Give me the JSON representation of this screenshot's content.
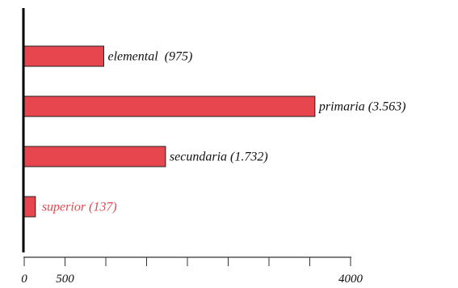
{
  "chart_data": {
    "type": "bar",
    "orientation": "horizontal",
    "title": "",
    "xlabel": "",
    "ylabel": "",
    "categories": [
      "elemental",
      "primaria",
      "secundaria",
      "superior"
    ],
    "values": [
      975,
      3563,
      1732,
      137
    ],
    "data_labels": [
      "elemental  (975)",
      "primaria (3.563)",
      "secundaria (1.732)",
      "superior (137)"
    ],
    "xlim": [
      0,
      4000
    ],
    "x_ticks": [
      0,
      500,
      1000,
      1500,
      2000,
      2500,
      3000,
      3500,
      4000
    ],
    "x_tick_labels": [
      "0",
      "500",
      "",
      "",
      "",
      "",
      "",
      "",
      "4000"
    ],
    "grid": false,
    "legend": "none",
    "colors": {
      "bar": "#e8464e",
      "outside_label": "#e8464e",
      "text": "#111111"
    }
  }
}
